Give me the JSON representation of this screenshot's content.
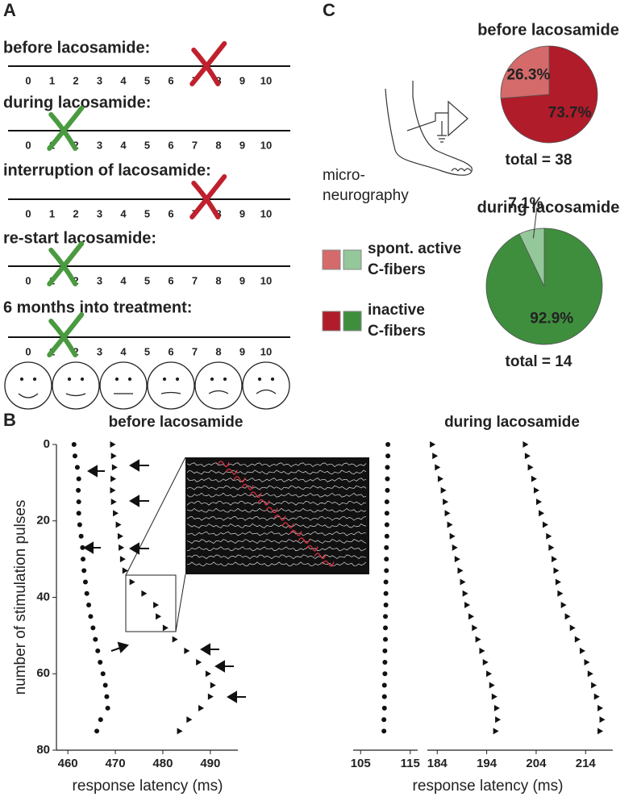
{
  "panel_labels": [
    "A",
    "B",
    "C"
  ],
  "scale_panel": {
    "ticks": [
      0,
      1,
      2,
      3,
      4,
      5,
      6,
      7,
      8,
      9,
      10
    ],
    "rows": [
      {
        "label": "before lacosamide:",
        "mark": 7.5,
        "color": "#c0202e"
      },
      {
        "label": "during lacosamide:",
        "mark": 1.5,
        "color": "#4a9a40"
      },
      {
        "label": "interruption of lacosamide:",
        "mark": 7.5,
        "color": "#c0202e"
      },
      {
        "label": "re-start lacosamide:",
        "mark": 1.5,
        "color": "#4a9a40"
      },
      {
        "label": "6 months into treatment:",
        "mark": 1.5,
        "color": "#4a9a40"
      }
    ]
  },
  "micro_label": [
    "micro-",
    "neurography"
  ],
  "pie_legend": [
    {
      "label": [
        "spont. active",
        "C-fibers"
      ],
      "colors": [
        "#d46a6a",
        "#94c79a"
      ]
    },
    {
      "label": [
        "inactive",
        "C-fibers"
      ],
      "colors": [
        "#b01c2a",
        "#3e8e3e"
      ]
    }
  ],
  "chart_data": [
    {
      "type": "scatter",
      "title": "before lacosamide",
      "title_color": "#c0202e",
      "x_label": "response latency (ms)",
      "y_label": "number of stimulation pulses",
      "xlim": [
        457.6,
        495.8
      ],
      "xticks": [
        460,
        470,
        480,
        490
      ],
      "ylim": [
        0,
        80
      ],
      "yticks": [
        0,
        20,
        40,
        60,
        80
      ],
      "y_inverted": true,
      "series": [
        {
          "marker": "circle",
          "x": [
            461.3,
            461.5,
            462.0,
            462.3,
            462.2,
            462.3,
            462.3,
            462.5,
            462.8,
            463.1,
            463.2,
            463.4,
            463.7,
            464.0,
            464.4,
            464.8,
            465.3,
            465.8,
            466.3,
            466.8,
            467.4,
            467.9,
            468.2,
            468.4,
            466.9,
            466.1
          ],
          "y": [
            0,
            3,
            6,
            9,
            12,
            15,
            18,
            21,
            24,
            27,
            30,
            33,
            36,
            39,
            42,
            45,
            48,
            51,
            54,
            57,
            60,
            63,
            66,
            69,
            72,
            75
          ]
        },
        {
          "marker": "triangle",
          "x": [
            469.4,
            469.6,
            469.8,
            469.5,
            469.4,
            469.6,
            470.0,
            470.6,
            471.0,
            471.2,
            471.5,
            472.0,
            473.5,
            476.0,
            478.5,
            479.0,
            480.5,
            482.5,
            485.0,
            487.5,
            489.5,
            490.5,
            490.0,
            488.0,
            485.5,
            483.5
          ],
          "y": [
            0,
            3,
            6,
            9,
            12,
            15,
            18,
            21,
            24,
            27,
            30,
            33,
            36,
            39,
            42,
            45,
            48,
            51,
            54,
            57,
            60,
            63,
            66,
            69,
            72,
            75
          ]
        }
      ]
    },
    {
      "type": "scatter",
      "title": "during lacosamide",
      "title_color": "#4a9a40",
      "x_label": "response latency (ms)",
      "xlim": [
        103.5,
        116.5
      ],
      "xticks": [
        105,
        115
      ],
      "x2lim": [
        182,
        219.5
      ],
      "x2ticks": [
        184,
        194,
        204,
        214
      ],
      "ylim": [
        0,
        80
      ],
      "y_inverted": true,
      "series": [
        {
          "marker": "circle",
          "x": [
            110.5,
            110.5,
            110.4,
            110.4,
            110.4,
            110.3,
            110.3,
            110.3,
            110.3,
            110.2,
            110.2,
            110.2,
            110.1,
            110.1,
            110.1,
            110.0,
            110.0,
            110.0,
            109.9,
            109.9,
            109.9,
            109.8,
            109.8,
            109.8,
            109.7,
            109.7
          ],
          "y": [
            0,
            3,
            6,
            9,
            12,
            15,
            18,
            21,
            24,
            27,
            30,
            33,
            36,
            39,
            42,
            45,
            48,
            51,
            54,
            57,
            60,
            63,
            66,
            69,
            72,
            75
          ]
        },
        {
          "marker": "triangle",
          "axis": "x2",
          "x": [
            183.0,
            183.5,
            184.0,
            184.6,
            185.2,
            185.6,
            186.0,
            186.5,
            187.0,
            187.5,
            188.0,
            188.6,
            189.1,
            189.6,
            190.0,
            190.8,
            191.5,
            192.2,
            193.0,
            193.7,
            194.4,
            195.0,
            195.5,
            196.0,
            196.2,
            195.8
          ],
          "y": [
            0,
            3,
            6,
            9,
            12,
            15,
            18,
            21,
            24,
            27,
            30,
            33,
            36,
            39,
            42,
            45,
            48,
            51,
            54,
            57,
            60,
            63,
            66,
            69,
            72,
            75
          ]
        },
        {
          "marker": "triangle",
          "axis": "x2",
          "x": [
            201.8,
            202.2,
            202.8,
            203.5,
            204.0,
            204.5,
            205.0,
            205.8,
            206.5,
            207.0,
            207.6,
            208.0,
            208.4,
            208.8,
            209.5,
            210.3,
            211.3,
            212.3,
            213.3,
            214.2,
            214.9,
            215.6,
            216.2,
            216.9,
            217.3,
            216.9
          ],
          "y": [
            0,
            3,
            6,
            9,
            12,
            15,
            18,
            21,
            24,
            27,
            30,
            33,
            36,
            39,
            42,
            45,
            48,
            51,
            54,
            57,
            60,
            63,
            66,
            69,
            72,
            75
          ]
        }
      ]
    },
    {
      "type": "pie",
      "title": "before lacosamide",
      "title_color": "#c0202e",
      "values": [
        73.7,
        26.3
      ],
      "value_labels": [
        "73.7%",
        "26.3%"
      ],
      "colors": [
        "#b01c2a",
        "#d46a6a"
      ],
      "total_label": "total = 38"
    },
    {
      "type": "pie",
      "title": "during lacosamide",
      "title_color": "#4a9a40",
      "values": [
        92.9,
        7.1
      ],
      "value_labels": [
        "92.9%",
        "7.1%"
      ],
      "colors": [
        "#3e8e3e",
        "#94c79a"
      ],
      "total_label": "total = 14"
    }
  ]
}
